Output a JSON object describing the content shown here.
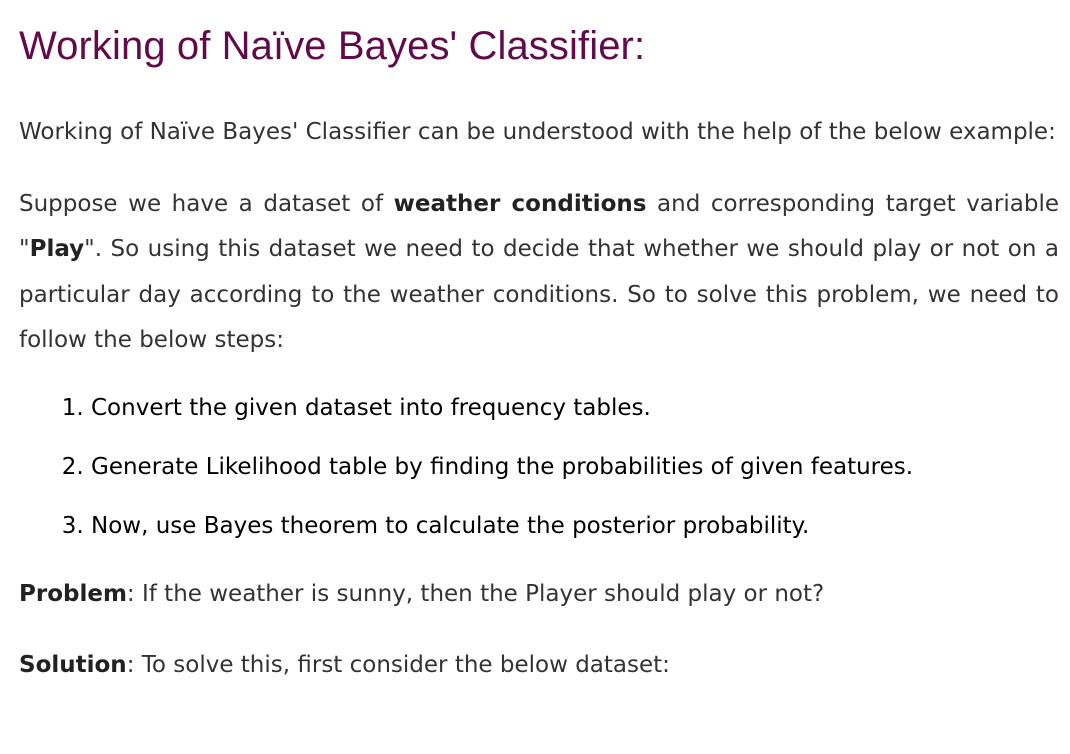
{
  "heading": "Working of Naïve Bayes' Classifier:",
  "intro": "Working of Naïve Bayes' Classifier can be understood with the help of the below example:",
  "dataset_paragraph": {
    "part1": "Suppose we have a dataset of ",
    "bold1": "weather conditions",
    "part2": " and corresponding target variable \"",
    "bold2": "Play",
    "part3": "\". So using this dataset we need to decide that whether we should play or not on a particular day according to the weather conditions. So to solve this problem, we need to follow the below steps:"
  },
  "steps": [
    "Convert the given dataset into frequency tables.",
    "Generate Likelihood table by finding the probabilities of given features.",
    "Now, use Bayes theorem to calculate the posterior probability."
  ],
  "problem": {
    "label": "Problem",
    "text": ": If the weather is sunny, then the Player should play or not?"
  },
  "solution": {
    "label": "Solution",
    "text": ": To solve this, first consider the below dataset:"
  }
}
